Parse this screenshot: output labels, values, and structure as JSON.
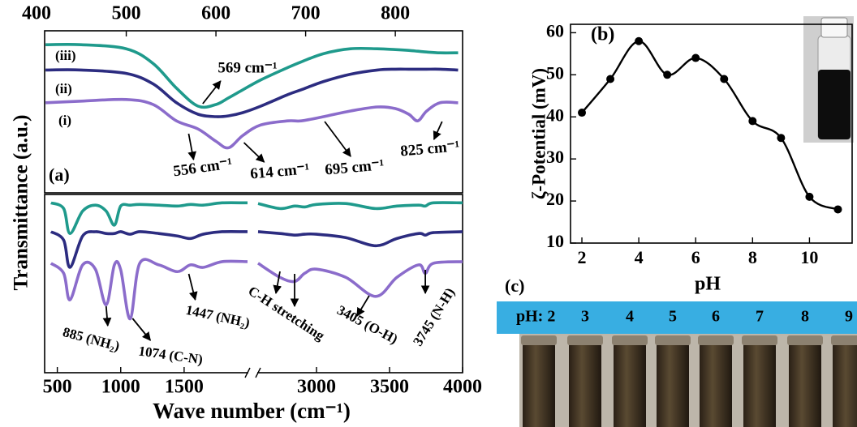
{
  "chart_data": [
    {
      "type": "line",
      "panel_label": "(a)",
      "y_label": "Transmittance (a.u.)",
      "x_axis_position": "top",
      "smooth": true,
      "x": [
        410,
        450,
        500,
        530,
        556,
        580,
        600,
        614,
        630,
        650,
        680,
        695,
        720,
        750,
        780,
        800,
        815,
        825,
        835,
        850,
        870
      ],
      "xlim": [
        409,
        875
      ],
      "xticks": [
        400,
        500,
        600,
        700,
        800
      ],
      "ylim": [
        0,
        100
      ],
      "series": [
        {
          "name": "(iii)",
          "color": "#1f9a8c",
          "values": [
            91.4,
            91.4,
            88.9,
            79.8,
            64.6,
            53.5,
            54.5,
            58.6,
            63.6,
            69.7,
            77.3,
            80.8,
            85.9,
            88.9,
            88.9,
            88.4,
            87.9,
            87.4,
            86.9,
            86.4,
            86.4
          ]
        },
        {
          "name": "(ii)",
          "color": "#2c2c80",
          "values": [
            75.8,
            75.8,
            73.7,
            67.2,
            55.6,
            48.5,
            47.0,
            47.5,
            49.5,
            53.5,
            60.6,
            63.6,
            68.7,
            73.2,
            75.8,
            76.3,
            76.3,
            76.3,
            76.3,
            76.3,
            75.8
          ]
        },
        {
          "name": "(i)",
          "color": "#8b6ccb",
          "values": [
            55.6,
            56.6,
            57.6,
            54.5,
            44.4,
            39.4,
            31.8,
            27.8,
            35.4,
            41.9,
            44.4,
            44.4,
            47.0,
            50.5,
            53.0,
            52.0,
            48.5,
            44.4,
            50.5,
            55.6,
            55.6
          ]
        }
      ],
      "annotations": [
        {
          "text": "569 cm⁻¹",
          "x": 569
        },
        {
          "text": "556 cm⁻¹",
          "x": 556
        },
        {
          "text": "614 cm⁻¹",
          "x": 614
        },
        {
          "text": "695 cm⁻¹",
          "x": 695
        },
        {
          "text": "825 cm⁻¹",
          "x": 825
        }
      ]
    },
    {
      "type": "line",
      "x_label": "Wave number (cm⁻¹)",
      "smooth": true,
      "x": [
        450,
        550,
        600,
        700,
        800,
        885,
        950,
        1000,
        1074,
        1150,
        1300,
        1447,
        1550,
        1650,
        1800,
        2000,
        2600,
        2750,
        2850,
        2920,
        3000,
        3200,
        3405,
        3550,
        3700,
        3745,
        3800,
        4000
      ],
      "xlim": [
        400,
        4000
      ],
      "xbreak": [
        2000,
        2600
      ],
      "xticks": [
        500,
        1000,
        1500,
        3000,
        3500,
        4000
      ],
      "ylim": [
        0,
        100
      ],
      "series": [
        {
          "color": "#1f9a8c",
          "values": [
            95.3,
            92.1,
            78.1,
            90.7,
            94.0,
            90.7,
            82.8,
            93.5,
            94.0,
            94.4,
            94.0,
            93.5,
            94.4,
            94.0,
            95.3,
            95.3,
            94.9,
            92.1,
            93.5,
            93.0,
            94.4,
            94.9,
            92.1,
            93.5,
            94.0,
            93.5,
            95.3,
            95.3
          ]
        },
        {
          "color": "#2c2c80",
          "values": [
            79.1,
            74.4,
            59.1,
            76.7,
            79.1,
            78.1,
            78.1,
            79.1,
            77.7,
            79.1,
            78.1,
            76.7,
            75.3,
            77.7,
            79.1,
            79.1,
            79.1,
            78.1,
            77.2,
            77.7,
            77.7,
            75.8,
            71.2,
            75.3,
            78.1,
            77.2,
            78.6,
            79.1
          ]
        },
        {
          "color": "#8b6ccb",
          "values": [
            61.4,
            55.8,
            40.9,
            60.5,
            58.1,
            38.1,
            60.5,
            57.7,
            30.2,
            61.4,
            60.5,
            56.7,
            60.5,
            59.1,
            62.3,
            62.3,
            61.4,
            53.5,
            51.2,
            55.8,
            58.1,
            53.5,
            42.8,
            53.5,
            60.5,
            55.8,
            61.4,
            62.3
          ]
        }
      ],
      "annotations": [
        {
          "text": "885 (NH₂)",
          "x": 885
        },
        {
          "text": "1074 (C-N)",
          "x": 1074
        },
        {
          "text": "1447 (NH₂)",
          "x": 1447
        },
        {
          "text": "C-H stretching"
        },
        {
          "text": "3405 (O-H)",
          "x": 3405
        },
        {
          "text": "3745 (N-H)",
          "x": 3745
        }
      ]
    },
    {
      "type": "line",
      "panel_label": "(b)",
      "x_label": "pH",
      "y_label": "ζ-Potential (mV)",
      "smooth": true,
      "markers": true,
      "color": "#000000",
      "x": [
        2,
        3,
        4,
        5,
        6,
        7,
        8,
        9,
        10,
        11
      ],
      "values": [
        41,
        49,
        58,
        50,
        54,
        49,
        39,
        35,
        21,
        18
      ],
      "xlim": [
        1.6,
        11.5
      ],
      "xticks": [
        2,
        4,
        6,
        8,
        10
      ],
      "ylim": [
        10,
        62
      ],
      "yticks": [
        10,
        20,
        30,
        40,
        50,
        60
      ]
    }
  ],
  "panel_c": {
    "label": "(c)",
    "ph_labels": [
      "pH: 2",
      "3",
      "4",
      "5",
      "6",
      "7",
      "8",
      "9"
    ]
  }
}
